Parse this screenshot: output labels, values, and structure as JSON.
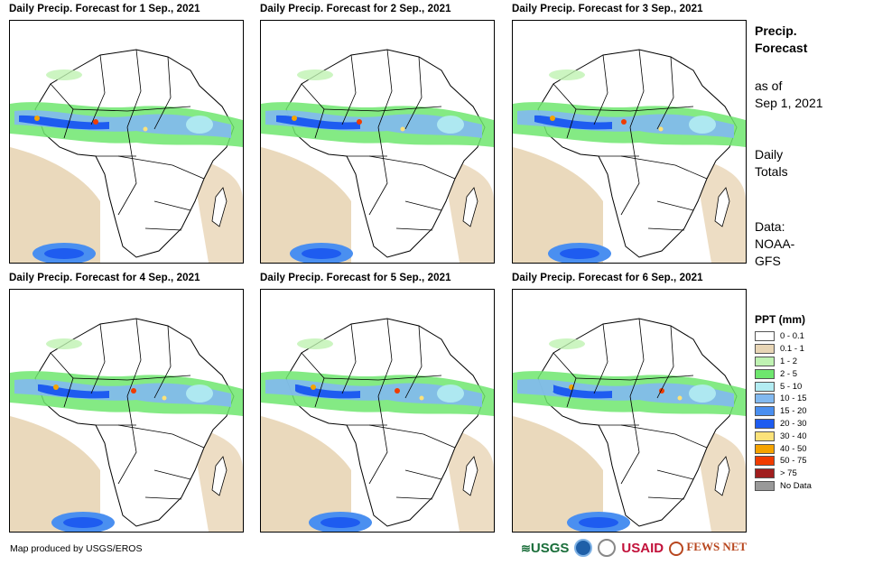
{
  "panels": [
    {
      "title": "Daily Precip. Forecast for 1 Sep., 2021"
    },
    {
      "title": "Daily Precip. Forecast for 2 Sep., 2021"
    },
    {
      "title": "Daily Precip. Forecast for 3 Sep., 2021"
    },
    {
      "title": "Daily Precip. Forecast for 4 Sep., 2021"
    },
    {
      "title": "Daily Precip. Forecast for 5 Sep., 2021"
    },
    {
      "title": "Daily Precip. Forecast for 6 Sep., 2021"
    }
  ],
  "sidebar": {
    "heading_line1": "Precip.",
    "heading_line2": "Forecast",
    "asof_line1": "as of",
    "asof_line2": "Sep 1, 2021",
    "totals_line1": "Daily",
    "totals_line2": "Totals",
    "data_line1": "Data:",
    "data_line2": "NOAA-",
    "data_line3": "GFS"
  },
  "legend": {
    "title": "PPT (mm)",
    "items": [
      {
        "label": "0 - 0.1",
        "color": "#ffffff"
      },
      {
        "label": "0.1 - 1",
        "color": "#e8d5b5"
      },
      {
        "label": "1 - 2",
        "color": "#bff2b2"
      },
      {
        "label": "2 - 5",
        "color": "#6ee66e"
      },
      {
        "label": "5 - 10",
        "color": "#b3ecf2"
      },
      {
        "label": "10 - 15",
        "color": "#82b9f0"
      },
      {
        "label": "15 - 20",
        "color": "#4a8ff0"
      },
      {
        "label": "20 - 30",
        "color": "#1e5cf0"
      },
      {
        "label": "30 - 40",
        "color": "#fbe27a"
      },
      {
        "label": "40 - 50",
        "color": "#f5a300"
      },
      {
        "label": "50 - 75",
        "color": "#f03c00"
      },
      {
        "label": "> 75",
        "color": "#a01e1e"
      },
      {
        "label": "No Data",
        "color": "#999999"
      }
    ]
  },
  "footer": {
    "credit": "Map produced by USGS/EROS"
  },
  "logos": {
    "usgs": "USGS",
    "usaid": "USAID",
    "fewsnet": "FEWS NET"
  }
}
